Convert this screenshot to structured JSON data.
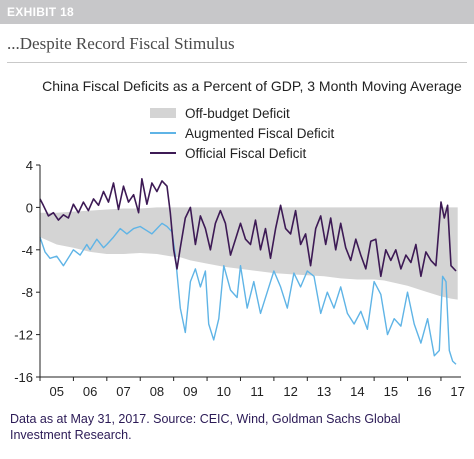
{
  "header": {
    "exhibit_label": "EXHIBIT 18",
    "subtitle": "...Despite Record Fiscal Stimulus"
  },
  "chart_data": {
    "type": "line",
    "title": "China Fiscal Deficits as a Percent of GDP, 3 Month Moving Average",
    "xlabel": "",
    "ylabel": "",
    "ylim": [
      -16,
      4
    ],
    "xlim": [
      2005.0,
      2017.6
    ],
    "yticks": [
      4,
      0,
      -4,
      -8,
      -12,
      -16
    ],
    "xticks": [
      "05",
      "06",
      "07",
      "08",
      "09",
      "10",
      "11",
      "12",
      "13",
      "14",
      "15",
      "16",
      "17"
    ],
    "grid": false,
    "legend_position": "top-center",
    "series": [
      {
        "name": "Off-budget Deficit",
        "kind": "area",
        "color": "#d4d4d4",
        "x": [
          2005.0,
          2005.5,
          2006.0,
          2006.5,
          2007.0,
          2007.5,
          2008.0,
          2008.5,
          2008.9,
          2009.2,
          2009.5,
          2010.0,
          2010.5,
          2011.0,
          2011.5,
          2012.0,
          2012.5,
          2013.0,
          2013.5,
          2014.0,
          2014.5,
          2015.0,
          2015.3,
          2015.6,
          2016.0,
          2016.5,
          2017.0,
          2017.3,
          2017.5
        ],
        "y_upper": [
          -0.5,
          -0.5,
          -0.4,
          -0.3,
          -0.2,
          -0.1,
          -0.1,
          0.0,
          0.0,
          0.0,
          0.0,
          0.0,
          0.0,
          0.0,
          0.0,
          0.0,
          0.0,
          0.0,
          0.0,
          0.0,
          0.0,
          0.0,
          0.0,
          0.0,
          0.0,
          0.0,
          0.0,
          0.0,
          0.0
        ],
        "y_lower": [
          -2.8,
          -3.5,
          -3.8,
          -4.2,
          -4.4,
          -4.4,
          -4.3,
          -4.4,
          -4.6,
          -4.7,
          -5.0,
          -5.3,
          -5.6,
          -5.8,
          -6.0,
          -6.2,
          -6.3,
          -6.4,
          -6.5,
          -6.7,
          -6.8,
          -6.8,
          -6.9,
          -7.1,
          -7.4,
          -7.9,
          -8.4,
          -8.6,
          -8.7
        ]
      },
      {
        "name": "Augmented Fiscal Deficit",
        "kind": "line",
        "color": "#5fb4e6",
        "x": [
          2005.0,
          2005.15,
          2005.3,
          2005.5,
          2005.7,
          2005.9,
          2006.0,
          2006.2,
          2006.4,
          2006.5,
          2006.7,
          2006.9,
          2007.0,
          2007.2,
          2007.4,
          2007.6,
          2007.8,
          2008.0,
          2008.2,
          2008.35,
          2008.5,
          2008.65,
          2008.8,
          2008.95,
          2009.05,
          2009.2,
          2009.35,
          2009.5,
          2009.65,
          2009.8,
          2009.95,
          2010.05,
          2010.2,
          2010.35,
          2010.5,
          2010.7,
          2010.9,
          2011.0,
          2011.2,
          2011.4,
          2011.6,
          2011.8,
          2012.0,
          2012.2,
          2012.4,
          2012.6,
          2012.8,
          2013.0,
          2013.2,
          2013.4,
          2013.6,
          2013.8,
          2014.0,
          2014.2,
          2014.4,
          2014.6,
          2014.8,
          2015.0,
          2015.2,
          2015.4,
          2015.6,
          2015.8,
          2016.0,
          2016.2,
          2016.4,
          2016.6,
          2016.8,
          2016.95,
          2017.05,
          2017.15,
          2017.25,
          2017.35,
          2017.45
        ],
        "values": [
          -2.8,
          -4.2,
          -4.8,
          -4.6,
          -5.5,
          -4.5,
          -4.0,
          -4.5,
          -3.5,
          -4.0,
          -3.0,
          -3.8,
          -3.5,
          -2.8,
          -2.0,
          -2.5,
          -2.0,
          -1.8,
          -2.2,
          -2.5,
          -2.0,
          -1.5,
          -1.8,
          -2.3,
          -4.5,
          -9.5,
          -11.8,
          -7.0,
          -5.8,
          -7.5,
          -6.0,
          -11.0,
          -12.5,
          -10.5,
          -5.5,
          -7.8,
          -8.5,
          -5.5,
          -9.5,
          -7.0,
          -10.0,
          -8.0,
          -6.0,
          -7.5,
          -9.5,
          -6.2,
          -7.5,
          -6.0,
          -6.5,
          -10.0,
          -8.0,
          -9.5,
          -7.5,
          -10.0,
          -11.0,
          -9.8,
          -11.5,
          -7.0,
          -8.2,
          -12.0,
          -10.5,
          -11.2,
          -8.0,
          -11.0,
          -12.8,
          -10.5,
          -14.0,
          -13.5,
          -6.5,
          -7.0,
          -13.5,
          -14.5,
          -14.8
        ]
      },
      {
        "name": "Official Fiscal Deficit",
        "kind": "line",
        "color": "#3d1a55",
        "x": [
          2005.0,
          2005.1,
          2005.25,
          2005.4,
          2005.55,
          2005.7,
          2005.85,
          2006.0,
          2006.15,
          2006.3,
          2006.45,
          2006.6,
          2006.75,
          2006.9,
          2007.05,
          2007.2,
          2007.35,
          2007.5,
          2007.65,
          2007.8,
          2007.95,
          2008.05,
          2008.2,
          2008.35,
          2008.5,
          2008.65,
          2008.8,
          2008.9,
          2009.0,
          2009.1,
          2009.2,
          2009.35,
          2009.5,
          2009.65,
          2009.8,
          2009.95,
          2010.1,
          2010.25,
          2010.4,
          2010.55,
          2010.7,
          2010.85,
          2011.0,
          2011.15,
          2011.3,
          2011.45,
          2011.6,
          2011.75,
          2011.9,
          2012.05,
          2012.2,
          2012.35,
          2012.5,
          2012.65,
          2012.8,
          2012.95,
          2013.1,
          2013.25,
          2013.4,
          2013.55,
          2013.7,
          2013.85,
          2014.0,
          2014.15,
          2014.3,
          2014.45,
          2014.6,
          2014.75,
          2014.9,
          2015.05,
          2015.2,
          2015.35,
          2015.5,
          2015.65,
          2015.8,
          2015.95,
          2016.1,
          2016.25,
          2016.4,
          2016.55,
          2016.7,
          2016.85,
          2016.95,
          2017.0,
          2017.1,
          2017.2,
          2017.3,
          2017.45
        ],
        "values": [
          0.8,
          0.2,
          -0.8,
          -0.5,
          -1.2,
          -0.7,
          -1.0,
          0.3,
          -0.5,
          0.5,
          -0.3,
          0.8,
          0.2,
          1.5,
          0.5,
          2.3,
          -0.2,
          2.0,
          0.5,
          1.2,
          -0.5,
          2.7,
          0.3,
          2.3,
          1.5,
          2.5,
          2.0,
          -0.5,
          -4.0,
          -5.8,
          -3.8,
          -1.0,
          0.0,
          -3.5,
          -0.8,
          -2.0,
          -4.0,
          -1.5,
          -0.3,
          -1.5,
          -4.5,
          -3.0,
          -1.5,
          -3.0,
          -3.5,
          -1.2,
          -4.0,
          -2.0,
          -4.8,
          -2.0,
          0.2,
          -2.0,
          -2.5,
          -0.3,
          -3.5,
          -2.5,
          -5.5,
          -2.0,
          -0.8,
          -3.5,
          -1.0,
          -4.0,
          -1.5,
          -3.8,
          -5.0,
          -3.0,
          -4.5,
          -5.8,
          -3.2,
          -3.0,
          -6.5,
          -4.0,
          -5.0,
          -4.0,
          -5.8,
          -4.5,
          -5.2,
          -3.5,
          -6.5,
          -4.2,
          -5.0,
          -5.5,
          -1.5,
          0.5,
          -1.0,
          0.2,
          -5.5,
          -6.0
        ]
      }
    ]
  },
  "footnote": {
    "line1": "Data as at May 31, 2017. Source: CEIC, Wind, Goldman Sachs Global",
    "line2": "Investment Research."
  }
}
